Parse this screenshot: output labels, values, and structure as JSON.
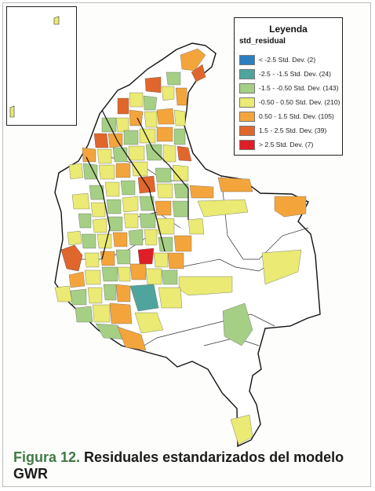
{
  "legend": {
    "title": "Leyenda",
    "field": "std_residual",
    "items": [
      {
        "label": "< -2.5 Std. Dev. (2)",
        "color": "#2b7fc1"
      },
      {
        "label": "-2.5 - -1.5 Std. Dev. (24)",
        "color": "#4fa59d"
      },
      {
        "label": "-1.5 - -0.50 Std. Dev. (143)",
        "color": "#a6cf86"
      },
      {
        "label": "-0.50 - 0.50 Std. Dev. (210)",
        "color": "#eaea74"
      },
      {
        "label": "0.50 - 1.5 Std. Dev. (105)",
        "color": "#f3a53c"
      },
      {
        "label": "1.5 - 2.5 Std. Dev. (39)",
        "color": "#e1662c"
      },
      {
        "label": "> 2.5 Std. Dev. (7)",
        "color": "#e01e26"
      }
    ]
  },
  "caption": {
    "figure_number": "Figura 12.",
    "title": "Residuales estandarizados del modelo GWR"
  }
}
